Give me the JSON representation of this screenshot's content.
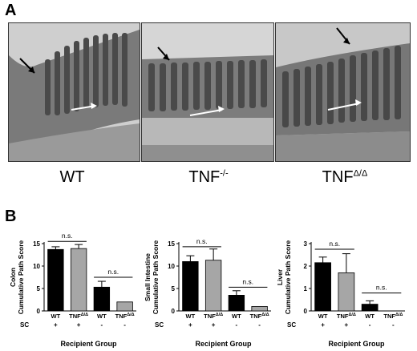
{
  "panel_a": {
    "letter": "A",
    "images": [
      {
        "label_main": "WT",
        "label_sup": ""
      },
      {
        "label_main": "TNF",
        "label_sup": "-/-"
      },
      {
        "label_main": "TNF",
        "label_sup": "Δ/Δ"
      }
    ]
  },
  "panel_b": {
    "letter": "B"
  },
  "chart_data": [
    {
      "type": "bar",
      "ylabel": [
        "Colon",
        "Cumulative Path Score"
      ],
      "xlabel": "Recipient Group",
      "row_label": "SC",
      "ylim": [
        0,
        15
      ],
      "yticks": [
        0,
        5,
        10,
        15
      ],
      "bars": [
        {
          "group": "WT",
          "sup": "",
          "sc": "+",
          "value": 13.7,
          "error": 0.6,
          "color": "#000000"
        },
        {
          "group": "TNF",
          "sup": "Δ/Δ",
          "sc": "+",
          "value": 13.9,
          "error": 0.9,
          "color": "#a6a6a6"
        },
        {
          "group": "WT",
          "sup": "",
          "sc": "-",
          "value": 5.3,
          "error": 1.3,
          "color": "#000000"
        },
        {
          "group": "TNF",
          "sup": "Δ/Δ",
          "sc": "-",
          "value": 2.0,
          "error": 0,
          "color": "#a6a6a6"
        }
      ],
      "annotations": [
        {
          "text": "n.s.",
          "from": 0,
          "to": 1,
          "y": 15.5
        },
        {
          "text": "n.s.",
          "from": 2,
          "to": 3,
          "y": 7.5
        }
      ]
    },
    {
      "type": "bar",
      "ylabel": [
        "Small Intestine",
        "Cumulative Path Score"
      ],
      "xlabel": "Recipient Group",
      "row_label": "SC",
      "ylim": [
        0,
        15
      ],
      "yticks": [
        0,
        5,
        10,
        15
      ],
      "bars": [
        {
          "group": "WT",
          "sup": "",
          "sc": "+",
          "value": 11.0,
          "error": 1.3,
          "color": "#000000"
        },
        {
          "group": "TNF",
          "sup": "Δ/Δ",
          "sc": "+",
          "value": 11.3,
          "error": 2.5,
          "color": "#a6a6a6"
        },
        {
          "group": "WT",
          "sup": "",
          "sc": "-",
          "value": 3.5,
          "error": 1.0,
          "color": "#000000"
        },
        {
          "group": "TNF",
          "sup": "Δ/Δ",
          "sc": "-",
          "value": 1.0,
          "error": 0,
          "color": "#a6a6a6"
        }
      ],
      "annotations": [
        {
          "text": "n.s.",
          "from": 0,
          "to": 1,
          "y": 14.3
        },
        {
          "text": "n.s.",
          "from": 2,
          "to": 3,
          "y": 5.3
        }
      ]
    },
    {
      "type": "bar",
      "ylabel": [
        "Liver",
        "Cumulative Path Score"
      ],
      "xlabel": "Recipient Group",
      "row_label": "SC",
      "ylim": [
        0,
        3
      ],
      "yticks": [
        0,
        1,
        2,
        3
      ],
      "bars": [
        {
          "group": "WT",
          "sup": "",
          "sc": "+",
          "value": 2.15,
          "error": 0.25,
          "color": "#000000"
        },
        {
          "group": "TNF",
          "sup": "Δ/Δ",
          "sc": "+",
          "value": 1.7,
          "error": 0.85,
          "color": "#a6a6a6"
        },
        {
          "group": "WT",
          "sup": "",
          "sc": "-",
          "value": 0.3,
          "error": 0.15,
          "color": "#000000"
        },
        {
          "group": "TNF",
          "sup": "Δ/Δ",
          "sc": "-",
          "value": 0.0,
          "error": 0,
          "color": "#a6a6a6"
        }
      ],
      "annotations": [
        {
          "text": "n.s.",
          "from": 0,
          "to": 1,
          "y": 2.75
        },
        {
          "text": "n.s.",
          "from": 2,
          "to": 3,
          "y": 0.8
        }
      ]
    }
  ]
}
